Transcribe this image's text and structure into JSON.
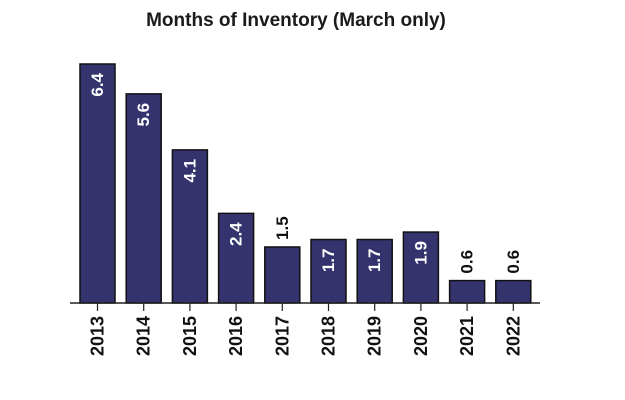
{
  "chart_data": {
    "type": "bar",
    "title": "Months of Inventory (March only)",
    "xlabel": "",
    "ylabel": "",
    "categories": [
      "2013",
      "2014",
      "2015",
      "2016",
      "2017",
      "2018",
      "2019",
      "2020",
      "2021",
      "2022"
    ],
    "values": [
      6.4,
      5.6,
      4.1,
      2.4,
      1.5,
      1.7,
      1.7,
      1.9,
      0.6,
      0.6
    ],
    "data_labels": [
      "6.4",
      "5.6",
      "4.1",
      "2.4",
      "1.5",
      "1.7",
      "1.7",
      "1.9",
      "0.6",
      "0.6"
    ],
    "ylim": [
      0,
      6.4
    ],
    "grid": false,
    "legend": "none",
    "colors": {
      "bar": "#34336e",
      "label_inside": "#ffffff",
      "label_outside": "#111111"
    }
  }
}
